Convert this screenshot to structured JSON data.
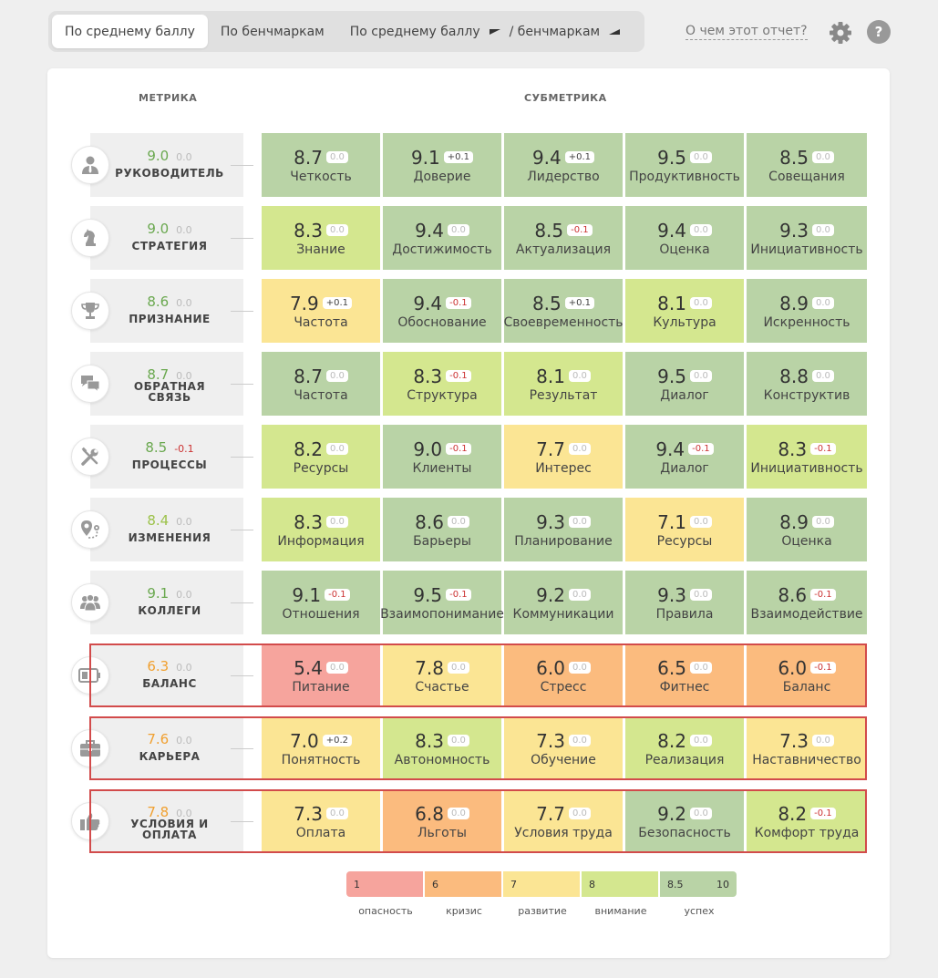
{
  "tabs": [
    {
      "label": "По среднему баллу"
    },
    {
      "label": "По бенчмаркам"
    },
    {
      "label_a": "По среднему баллу",
      "label_b": "/ бенчмаркам"
    }
  ],
  "about_link": "О чем этот отчет?",
  "help_label": "?",
  "headers": {
    "metric": "МЕТРИКА",
    "submetric": "СУБМЕТРИКА"
  },
  "colors": {
    "green": "#b9d3a6",
    "lime": "#d4e78f",
    "yellow": "#fbe594",
    "orange": "#fbbb7e",
    "red": "#f6a49d",
    "score_green": "#6aa84f",
    "score_lime": "#9cc24a",
    "score_orange": "#f0a030",
    "alert_border": "#d24b4b"
  },
  "metrics": [
    {
      "name": "РУКОВОДИТЕЛЬ",
      "icon": "manager-icon",
      "score": "9.0",
      "delta": "0.0",
      "score_color": "green",
      "subs": [
        [
          "8.7",
          "0.0",
          "Четкость",
          "green"
        ],
        [
          "9.1",
          "+0.1",
          "Доверие",
          "green"
        ],
        [
          "9.4",
          "+0.1",
          "Лидерство",
          "green"
        ],
        [
          "9.5",
          "0.0",
          "Продуктивность",
          "green"
        ],
        [
          "8.5",
          "0.0",
          "Совещания",
          "green"
        ]
      ]
    },
    {
      "name": "СТРАТЕГИЯ",
      "icon": "chess-knight-icon",
      "score": "9.0",
      "delta": "0.0",
      "score_color": "green",
      "subs": [
        [
          "8.3",
          "0.0",
          "Знание",
          "lime"
        ],
        [
          "9.4",
          "0.0",
          "Достижимость",
          "green"
        ],
        [
          "8.5",
          "-0.1",
          "Актуализация",
          "green"
        ],
        [
          "9.4",
          "0.0",
          "Оценка",
          "green"
        ],
        [
          "9.3",
          "0.0",
          "Инициативность",
          "green"
        ]
      ]
    },
    {
      "name": "ПРИЗНАНИЕ",
      "icon": "trophy-icon",
      "score": "8.6",
      "delta": "0.0",
      "score_color": "green",
      "subs": [
        [
          "7.9",
          "+0.1",
          "Частота",
          "yellow"
        ],
        [
          "9.4",
          "-0.1",
          "Обоснование",
          "green"
        ],
        [
          "8.5",
          "+0.1",
          "Своевременность",
          "green"
        ],
        [
          "8.1",
          "0.0",
          "Культура",
          "lime"
        ],
        [
          "8.9",
          "0.0",
          "Искренность",
          "green"
        ]
      ]
    },
    {
      "name": "ОБРАТНАЯ",
      "name2": "СВЯЗЬ",
      "icon": "chat-bubbles-icon",
      "score": "8.7",
      "delta": "0.0",
      "score_color": "green",
      "subs": [
        [
          "8.7",
          "0.0",
          "Частота",
          "green"
        ],
        [
          "8.3",
          "-0.1",
          "Структура",
          "lime"
        ],
        [
          "8.1",
          "0.0",
          "Результат",
          "lime"
        ],
        [
          "9.5",
          "0.0",
          "Диалог",
          "green"
        ],
        [
          "8.8",
          "0.0",
          "Конструктив",
          "green"
        ]
      ]
    },
    {
      "name": "ПРОЦЕССЫ",
      "icon": "tools-icon",
      "score": "8.5",
      "delta": "-0.1",
      "score_color": "green",
      "subs": [
        [
          "8.2",
          "0.0",
          "Ресурсы",
          "lime"
        ],
        [
          "9.0",
          "-0.1",
          "Клиенты",
          "green"
        ],
        [
          "7.7",
          "0.0",
          "Интерес",
          "yellow"
        ],
        [
          "9.4",
          "-0.1",
          "Диалог",
          "green"
        ],
        [
          "8.3",
          "-0.1",
          "Инициативность",
          "lime"
        ]
      ]
    },
    {
      "name": "ИЗМЕНЕНИЯ",
      "icon": "map-route-icon",
      "score": "8.4",
      "delta": "0.0",
      "score_color": "lime",
      "subs": [
        [
          "8.3",
          "0.0",
          "Информация",
          "lime"
        ],
        [
          "8.6",
          "0.0",
          "Барьеры",
          "green"
        ],
        [
          "9.3",
          "0.0",
          "Планирование",
          "green"
        ],
        [
          "7.1",
          "0.0",
          "Ресурсы",
          "yellow"
        ],
        [
          "8.9",
          "0.0",
          "Оценка",
          "green"
        ]
      ]
    },
    {
      "name": "КОЛЛЕГИ",
      "icon": "team-icon",
      "score": "9.1",
      "delta": "0.0",
      "score_color": "green",
      "subs": [
        [
          "9.1",
          "-0.1",
          "Отношения",
          "green"
        ],
        [
          "9.5",
          "-0.1",
          "Взаимопонимание",
          "green"
        ],
        [
          "9.2",
          "0.0",
          "Коммуникации",
          "green"
        ],
        [
          "9.3",
          "0.0",
          "Правила",
          "green"
        ],
        [
          "8.6",
          "-0.1",
          "Взаимодействие",
          "green"
        ]
      ]
    },
    {
      "name": "БАЛАНС",
      "icon": "battery-icon",
      "score": "6.3",
      "delta": "0.0",
      "score_color": "orange",
      "alert": true,
      "subs": [
        [
          "5.4",
          "0.0",
          "Питание",
          "red"
        ],
        [
          "7.8",
          "0.0",
          "Счастье",
          "yellow"
        ],
        [
          "6.0",
          "0.0",
          "Стресс",
          "orange"
        ],
        [
          "6.5",
          "0.0",
          "Фитнес",
          "orange"
        ],
        [
          "6.0",
          "-0.1",
          "Баланс",
          "orange"
        ]
      ]
    },
    {
      "name": "КАРЬЕРА",
      "icon": "briefcase-icon",
      "score": "7.6",
      "delta": "0.0",
      "score_color": "orange",
      "alert": true,
      "subs": [
        [
          "7.0",
          "+0.2",
          "Понятность",
          "yellow"
        ],
        [
          "8.3",
          "0.0",
          "Автономность",
          "lime"
        ],
        [
          "7.3",
          "0.0",
          "Обучение",
          "yellow"
        ],
        [
          "8.2",
          "0.0",
          "Реализация",
          "lime"
        ],
        [
          "7.3",
          "0.0",
          "Наставничество",
          "yellow"
        ]
      ]
    },
    {
      "name": "УСЛОВИЯ И",
      "name2": "ОПЛАТА",
      "icon": "thumbs-up-icon",
      "score": "7.8",
      "delta": "0.0",
      "score_color": "orange",
      "alert": true,
      "subs": [
        [
          "7.3",
          "0.0",
          "Оплата",
          "yellow"
        ],
        [
          "6.8",
          "0.0",
          "Льготы",
          "orange"
        ],
        [
          "7.7",
          "0.0",
          "Условия труда",
          "yellow"
        ],
        [
          "9.2",
          "0.0",
          "Безопасность",
          "green"
        ],
        [
          "8.2",
          "-0.1",
          "Комфорт труда",
          "lime"
        ]
      ]
    }
  ],
  "legend": {
    "scale": [
      {
        "from": "1",
        "color": "red"
      },
      {
        "from": "6",
        "color": "orange"
      },
      {
        "from": "7",
        "color": "yellow"
      },
      {
        "from": "8",
        "color": "lime"
      },
      {
        "from": "8.5",
        "to": "10",
        "color": "green"
      }
    ],
    "labels": [
      "опасность",
      "кризис",
      "развитие",
      "внимание",
      "успех"
    ]
  }
}
